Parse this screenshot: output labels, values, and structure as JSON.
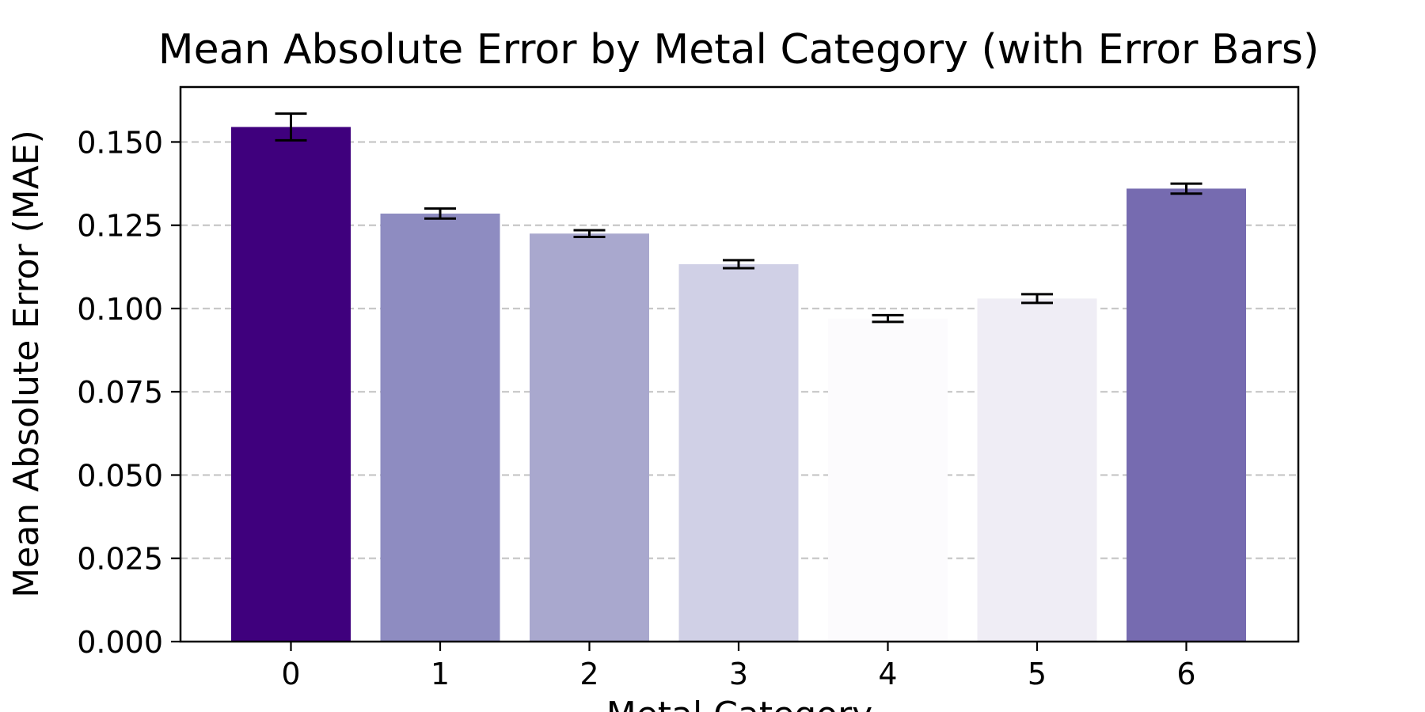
{
  "chart_data": {
    "type": "bar",
    "title": "Mean Absolute Error by Metal Category (with Error Bars)",
    "xlabel": "Metal Category",
    "ylabel": "Mean Absolute Error (MAE)",
    "categories": [
      "0",
      "1",
      "2",
      "3",
      "4",
      "5",
      "6"
    ],
    "values": [
      0.1545,
      0.1285,
      0.1225,
      0.1133,
      0.097,
      0.103,
      0.136
    ],
    "errors": [
      0.004,
      0.0015,
      0.001,
      0.0012,
      0.001,
      0.0013,
      0.0015
    ],
    "colors": [
      "#3f007d",
      "#8e8cc1",
      "#a9a8ce",
      "#d0d0e6",
      "#fcfbfd",
      "#efedf5",
      "#766bb0"
    ],
    "ylim": [
      0,
      0.1665
    ],
    "yticks": [
      "0.000",
      "0.025",
      "0.050",
      "0.075",
      "0.100",
      "0.125",
      "0.150"
    ],
    "grid": "y-dashed",
    "legend": "none"
  }
}
